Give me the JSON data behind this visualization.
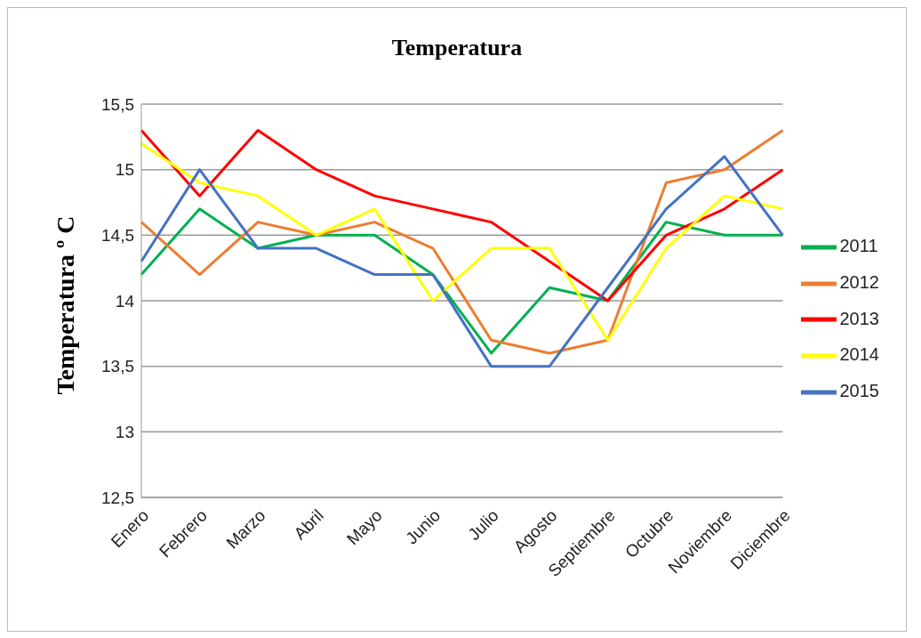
{
  "chart_data": {
    "type": "line",
    "title": "Temperatura",
    "ylabel": "Temperatura º C",
    "categories": [
      "Enero",
      "Febrero",
      "Marzo",
      "Abril",
      "Mayo",
      "Junio",
      "Julio",
      "Agosto",
      "Septiembre",
      "Octubre",
      "Noviembre",
      "Diciembre"
    ],
    "series": [
      {
        "name": "2011",
        "color": "#00b050",
        "values": [
          14.2,
          14.7,
          14.4,
          14.5,
          14.5,
          14.2,
          13.6,
          14.1,
          14.0,
          14.6,
          14.5,
          14.5
        ]
      },
      {
        "name": "2012",
        "color": "#ed7d31",
        "values": [
          14.6,
          14.2,
          14.6,
          14.5,
          14.6,
          14.4,
          13.7,
          13.6,
          13.7,
          14.9,
          15.0,
          15.3
        ]
      },
      {
        "name": "2013",
        "color": "#ff0000",
        "values": [
          15.3,
          14.8,
          15.3,
          15.0,
          14.8,
          14.7,
          14.6,
          14.3,
          14.0,
          14.5,
          14.7,
          15.0
        ]
      },
      {
        "name": "2014",
        "color": "#ffff00",
        "values": [
          15.2,
          14.9,
          14.8,
          14.5,
          14.7,
          14.0,
          14.4,
          14.4,
          13.7,
          14.4,
          14.8,
          14.7
        ]
      },
      {
        "name": "2015",
        "color": "#4472c4",
        "values": [
          14.3,
          15.0,
          14.4,
          14.4,
          14.2,
          14.2,
          13.5,
          13.5,
          14.1,
          14.7,
          15.1,
          14.5
        ]
      }
    ],
    "ylim": [
      12.5,
      15.5
    ],
    "yticks": [
      {
        "value": 12.5,
        "label": "12,5"
      },
      13,
      {
        "value": 13.5,
        "label": "13,5"
      },
      14,
      {
        "value": 14.5,
        "label": "14,5"
      },
      15,
      {
        "value": 15.5,
        "label": "15,5"
      }
    ],
    "grid": "y",
    "legend": "right",
    "marker": "none",
    "line_style": "solid"
  }
}
